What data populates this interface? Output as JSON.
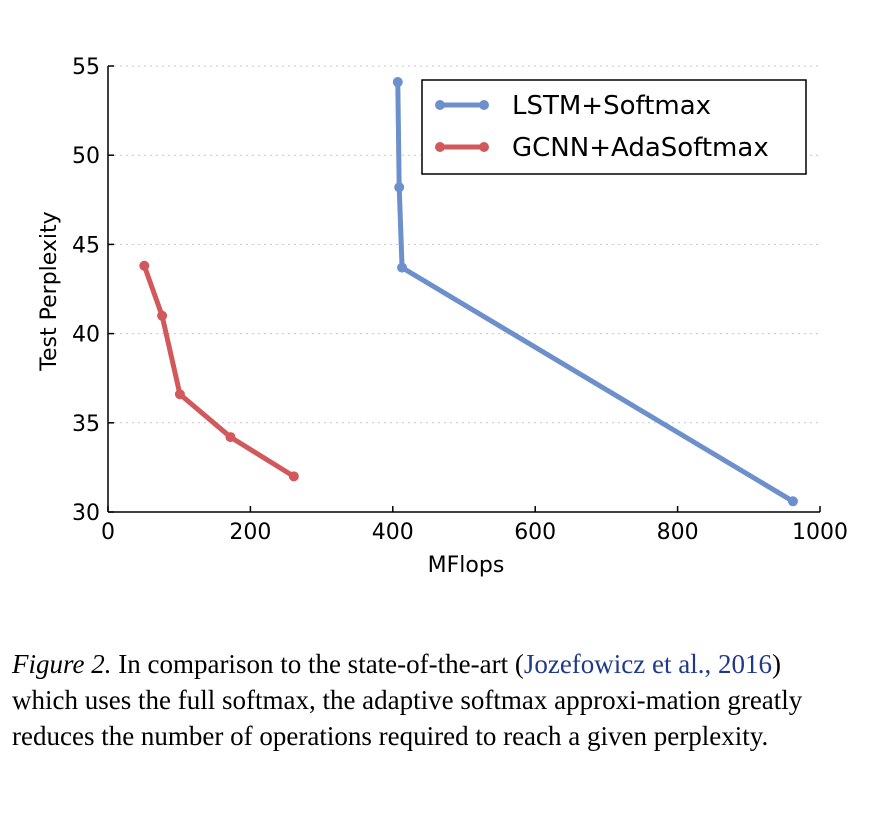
{
  "chart_data": {
    "type": "line",
    "xlabel": "MFlops",
    "ylabel": "Test Perplexity",
    "xlim": [
      0,
      1000
    ],
    "ylim": [
      30,
      55
    ],
    "xticks": [
      0,
      200,
      400,
      600,
      800,
      1000
    ],
    "yticks": [
      30,
      35,
      40,
      45,
      50,
      55
    ],
    "grid": "horizontal-dotted",
    "legend_position": "top-right",
    "series": [
      {
        "name": "LSTM+Softmax",
        "color": "#6d8fcb",
        "points": [
          [
            407,
            54.1
          ],
          [
            409,
            48.2
          ],
          [
            413,
            43.7
          ],
          [
            962,
            30.6
          ]
        ]
      },
      {
        "name": "GCNN+AdaSoftmax",
        "color": "#d1595c",
        "points": [
          [
            51,
            43.8
          ],
          [
            76,
            41.0
          ],
          [
            101,
            36.6
          ],
          [
            172,
            34.2
          ],
          [
            261,
            32.0
          ]
        ]
      }
    ]
  },
  "caption": {
    "label": "Figure 2.",
    "text_1": " In comparison to the state-of-the-art (",
    "cite_1": "Jozefowicz et al.,",
    "cite_2": "2016",
    "text_2": ") which uses the full softmax, the adaptive softmax approxi-mation greatly reduces the number of operations required to reach a given perplexity."
  }
}
